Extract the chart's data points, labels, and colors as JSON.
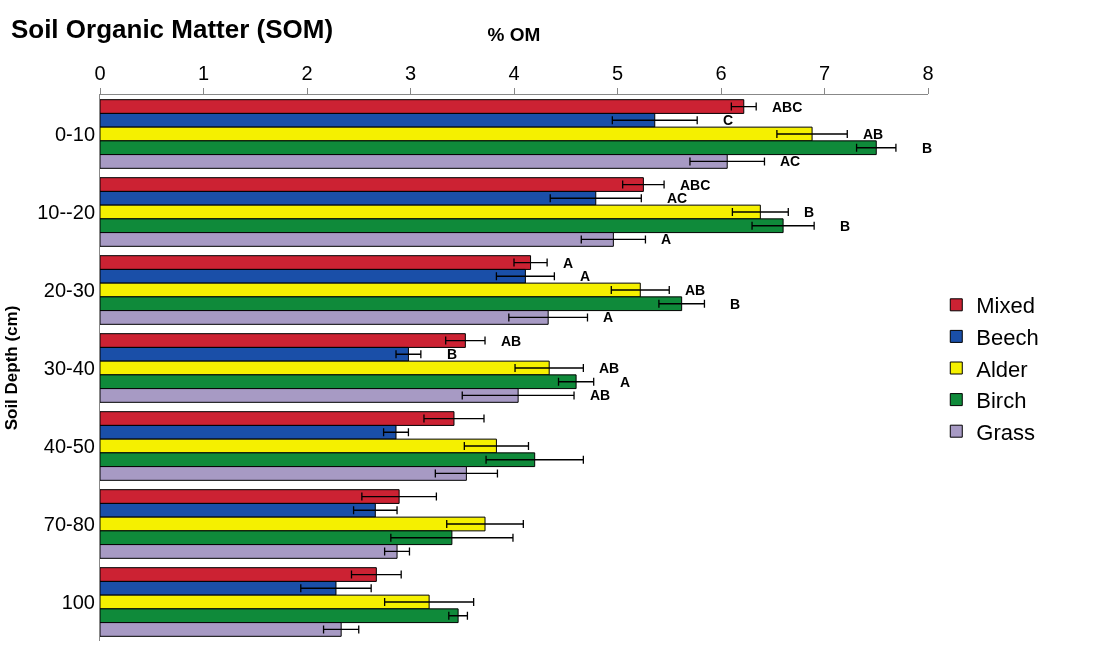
{
  "chart_data": {
    "type": "bar",
    "orientation": "horizontal",
    "title": "Soil Organic Matter (SOM)",
    "xlabel": "% OM",
    "ylabel": "Soil Depth (cm)",
    "categories": [
      "0-10",
      "10--20",
      "20-30",
      "30-40",
      "40-50",
      "70-80",
      "100"
    ],
    "xlim": [
      0,
      8
    ],
    "xticks": [
      0,
      1,
      2,
      3,
      4,
      5,
      6,
      7,
      8
    ],
    "legend": "right",
    "series": [
      {
        "name": "Mixed",
        "color": "#cc2233",
        "values": [
          6.22,
          5.25,
          4.16,
          3.53,
          3.42,
          2.89,
          2.67
        ],
        "errors": [
          0.12,
          0.2,
          0.16,
          0.19,
          0.29,
          0.36,
          0.24
        ]
      },
      {
        "name": "Beech",
        "color": "#1a4fa8",
        "values": [
          5.36,
          4.79,
          4.11,
          2.98,
          2.86,
          2.66,
          2.28
        ],
        "errors": [
          0.41,
          0.44,
          0.28,
          0.12,
          0.12,
          0.21,
          0.34
        ]
      },
      {
        "name": "Alder",
        "color": "#f5f000",
        "values": [
          6.88,
          6.38,
          5.22,
          4.34,
          3.83,
          3.72,
          3.18
        ],
        "errors": [
          0.34,
          0.27,
          0.28,
          0.33,
          0.31,
          0.37,
          0.43
        ]
      },
      {
        "name": "Birch",
        "color": "#0f8a3a",
        "values": [
          7.5,
          6.6,
          5.62,
          4.6,
          4.2,
          3.4,
          3.46
        ],
        "errors": [
          0.19,
          0.3,
          0.22,
          0.17,
          0.47,
          0.59,
          0.09
        ]
      },
      {
        "name": "Grass",
        "color": "#a79ac4",
        "values": [
          6.06,
          4.96,
          4.33,
          4.04,
          3.54,
          2.87,
          2.33
        ],
        "errors": [
          0.36,
          0.31,
          0.38,
          0.54,
          0.3,
          0.12,
          0.17
        ]
      }
    ],
    "annotations": [
      "ABC",
      "C",
      "AB",
      "B",
      "AC",
      "ABC",
      "AC",
      "B",
      "B",
      "A",
      "A",
      "A",
      "AB",
      "B",
      "A",
      "AB",
      "B",
      "AB",
      "A",
      "AB"
    ]
  }
}
